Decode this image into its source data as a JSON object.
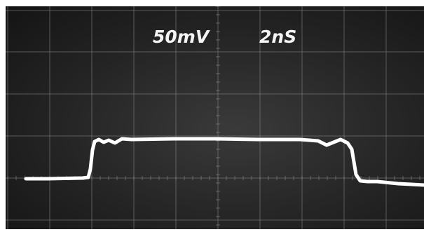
{
  "oscilloscope": {
    "volts_per_div": "50mV",
    "time_per_div": "2nS"
  },
  "colors": {
    "screen_dark": "#242424",
    "graticule": "#8a8a8a",
    "trace": "#ffffff",
    "label": "#f4f4f4"
  }
}
